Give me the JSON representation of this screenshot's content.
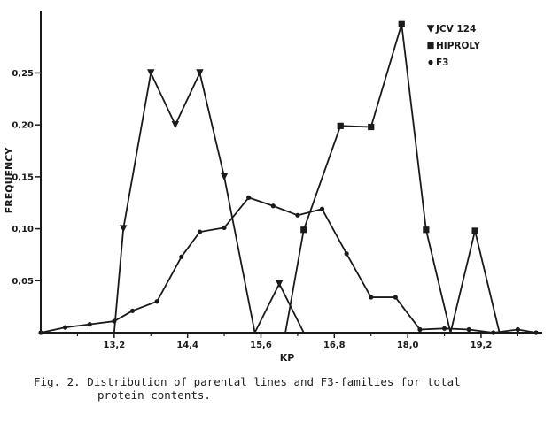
{
  "chart_data": {
    "type": "line",
    "xlabel": "KP",
    "ylabel": "FREQUENCY",
    "xlim": [
      12.0,
      20.2
    ],
    "ylim": [
      0,
      0.31
    ],
    "x_ticks": [
      "13,2",
      "14,4",
      "15,6",
      "16,8",
      "18,0",
      "19,2"
    ],
    "x_tick_values": [
      13.2,
      14.4,
      15.6,
      16.8,
      18.0,
      19.2
    ],
    "x_minor_ticks": [
      12.6,
      13.8,
      15.0,
      16.2,
      17.4,
      18.6,
      19.8
    ],
    "y_ticks": [
      "0,05",
      "0,10",
      "0,15",
      "0,20",
      "0,25"
    ],
    "y_tick_values": [
      0.05,
      0.1,
      0.15,
      0.2,
      0.25
    ],
    "grid": false,
    "legend_position": "top-right",
    "series": [
      {
        "name": "JCV 124",
        "marker": "triangle-down",
        "x": [
          13.2,
          13.35,
          13.8,
          14.2,
          14.6,
          15.0,
          15.5,
          15.9,
          16.3
        ],
        "y": [
          0.0,
          0.1,
          0.25,
          0.2,
          0.25,
          0.15,
          0.0,
          0.047,
          0.0
        ]
      },
      {
        "name": "HIPROLY",
        "marker": "square",
        "x": [
          16.0,
          16.3,
          16.9,
          17.4,
          17.9,
          18.3,
          18.7,
          19.1,
          19.5
        ],
        "y": [
          0.0,
          0.099,
          0.199,
          0.198,
          0.297,
          0.099,
          0.0,
          0.098,
          0.0
        ]
      },
      {
        "name": "F3",
        "marker": "circle",
        "x": [
          12.0,
          12.4,
          12.8,
          13.2,
          13.5,
          13.9,
          14.3,
          14.6,
          15.0,
          15.4,
          15.8,
          16.2,
          16.6,
          17.0,
          17.4,
          17.8,
          18.2,
          18.6,
          19.0,
          19.4,
          19.8,
          20.1
        ],
        "y": [
          0.0,
          0.005,
          0.008,
          0.011,
          0.021,
          0.03,
          0.073,
          0.097,
          0.101,
          0.13,
          0.122,
          0.113,
          0.119,
          0.076,
          0.034,
          0.034,
          0.003,
          0.004,
          0.003,
          0.0,
          0.003,
          0.0
        ]
      }
    ]
  },
  "caption": {
    "line1": "Fig. 2.  Distribution of parental lines and F3-families for total",
    "line2": "protein contents."
  },
  "colors": {
    "ink": "#1a1a1a",
    "background": "#ffffff"
  }
}
